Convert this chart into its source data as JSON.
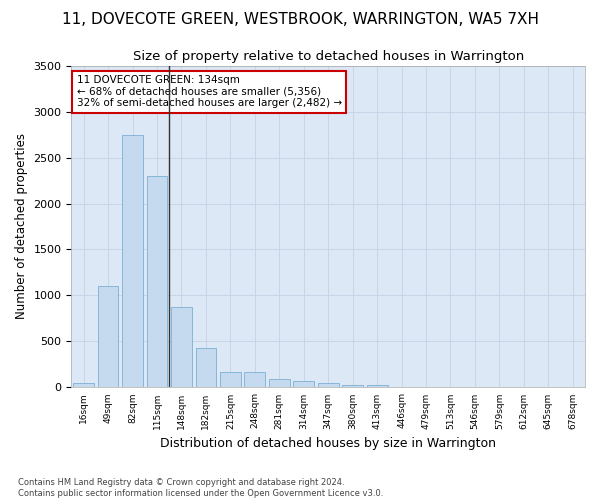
{
  "title": "11, DOVECOTE GREEN, WESTBROOK, WARRINGTON, WA5 7XH",
  "subtitle": "Size of property relative to detached houses in Warrington",
  "xlabel": "Distribution of detached houses by size in Warrington",
  "ylabel": "Number of detached properties",
  "categories": [
    "16sqm",
    "49sqm",
    "82sqm",
    "115sqm",
    "148sqm",
    "182sqm",
    "215sqm",
    "248sqm",
    "281sqm",
    "314sqm",
    "347sqm",
    "380sqm",
    "413sqm",
    "446sqm",
    "479sqm",
    "513sqm",
    "546sqm",
    "579sqm",
    "612sqm",
    "645sqm",
    "678sqm"
  ],
  "values": [
    50,
    1100,
    2750,
    2300,
    870,
    430,
    170,
    165,
    90,
    65,
    50,
    30,
    30,
    5,
    5,
    0,
    0,
    0,
    0,
    0,
    0
  ],
  "bar_color": "#c5d9ef",
  "bar_edge_color": "#7bafd4",
  "highlight_bar_index": 3.5,
  "annotation_text_line1": "11 DOVECOTE GREEN: 134sqm",
  "annotation_text_line2": "← 68% of detached houses are smaller (5,356)",
  "annotation_text_line3": "32% of semi-detached houses are larger (2,482) →",
  "annotation_box_color": "#ffffff",
  "annotation_box_edge_color": "#cc0000",
  "ylim": [
    0,
    3500
  ],
  "yticks": [
    0,
    500,
    1000,
    1500,
    2000,
    2500,
    3000,
    3500
  ],
  "grid_color": "#c8d4e8",
  "bg_color": "#ffffff",
  "plot_bg_color": "#dce8f5",
  "footer_line1": "Contains HM Land Registry data © Crown copyright and database right 2024.",
  "footer_line2": "Contains public sector information licensed under the Open Government Licence v3.0.",
  "title_fontsize": 11,
  "subtitle_fontsize": 9.5,
  "xlabel_fontsize": 9,
  "ylabel_fontsize": 8.5
}
